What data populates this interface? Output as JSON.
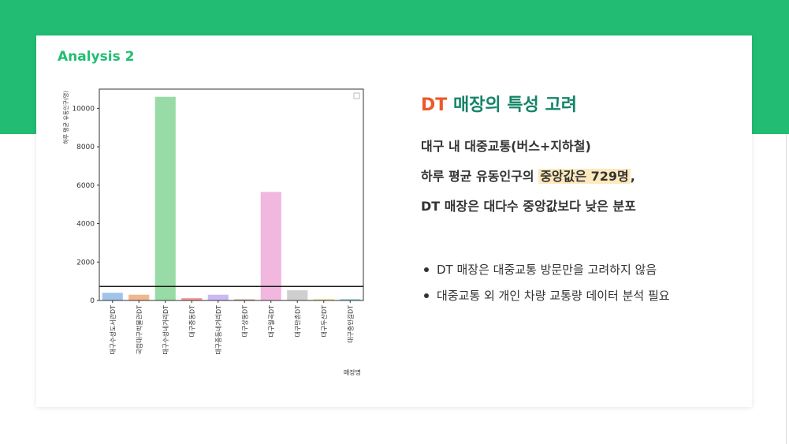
{
  "slide": {
    "section_label": "Analysis 2",
    "heading_accent": "DT",
    "heading_rest": " 매장의 특성 고려",
    "line1": "대구 내 대중교통(버스+지하철)",
    "line2_pre": "하루 평균 유동인구의 ",
    "line2_highlight": "중앙값은 729명",
    "line2_post": ",",
    "line3": "DT 매장은 대다수 중앙값보다 낮은 분포",
    "bullets": [
      "DT 매장은 대중교통 방문만을 고려하지 않음",
      "대중교통 외 개인 차량 교통량 데이터 분석 필요"
    ]
  },
  "colors": {
    "brand_green": "#22bd72",
    "heading_teal": "#138468",
    "accent_orange": "#ea5a2a",
    "highlight": "#fde9bd",
    "bar_palette": [
      "#a1c4ea",
      "#f1b78f",
      "#98dba6",
      "#f19a9a",
      "#cdb9f2",
      "#c6a499",
      "#f1b7df",
      "#cfcfcf",
      "#efe59d",
      "#a3d9ea"
    ]
  },
  "chart_data": {
    "type": "bar",
    "xlabel": "매장명",
    "ylabel": "하루 평균 유동인구(명)",
    "ylim": [
      0,
      11000
    ],
    "yticks": [
      0,
      2000,
      4000,
      6000,
      8000,
      10000
    ],
    "categories": [
      "대구수성도서관DT",
      "국립대구박물관DT",
      "대구수성네거리DT",
      "대구중동DT",
      "대구중동네거리DT",
      "대구상동DT",
      "대구월곡DT",
      "대구만촌DT",
      "대구두산DT",
      "대구중인길DT"
    ],
    "values": [
      400,
      300,
      10600,
      120,
      300,
      60,
      5650,
      530,
      80,
      80
    ],
    "reference_line": 729,
    "legend": "top-right, empty"
  }
}
